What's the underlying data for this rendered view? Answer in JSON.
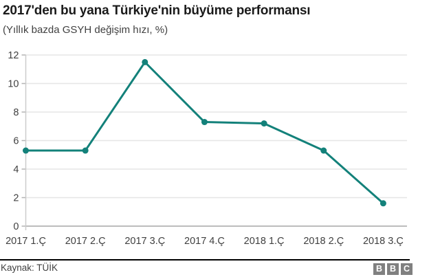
{
  "chart_data": {
    "type": "line",
    "title": "2017'den bu yana Türkiye'nin büyüme performansı",
    "subtitle": "(Yıllık bazda GSYH değişim hızı, %)",
    "categories": [
      "2017 1.Ç",
      "2017 2.Ç",
      "2017 3.Ç",
      "2017 4.Ç",
      "2018 1.Ç",
      "2018 2.Ç",
      "2018 3.Ç"
    ],
    "values": [
      5.3,
      5.3,
      11.5,
      7.3,
      7.2,
      5.3,
      1.6
    ],
    "series_name": "GSYH değişim hızı (%)",
    "xlabel": "",
    "ylabel": "",
    "ylim": [
      0,
      12
    ],
    "yticks": [
      0,
      2,
      4,
      6,
      8,
      10,
      12
    ],
    "grid": true,
    "legend": "none",
    "colors": {
      "line": "#13817a",
      "grid": "#e6e6e6",
      "baseline": "#a6a6a6",
      "tick": "#b3b3b3",
      "axis": "#cccccc",
      "label": "#404040"
    }
  },
  "footer": {
    "source": "Kaynak: TÜİK",
    "logo": {
      "blocks": [
        "B",
        "B",
        "C"
      ],
      "block_color": "#808080"
    }
  }
}
